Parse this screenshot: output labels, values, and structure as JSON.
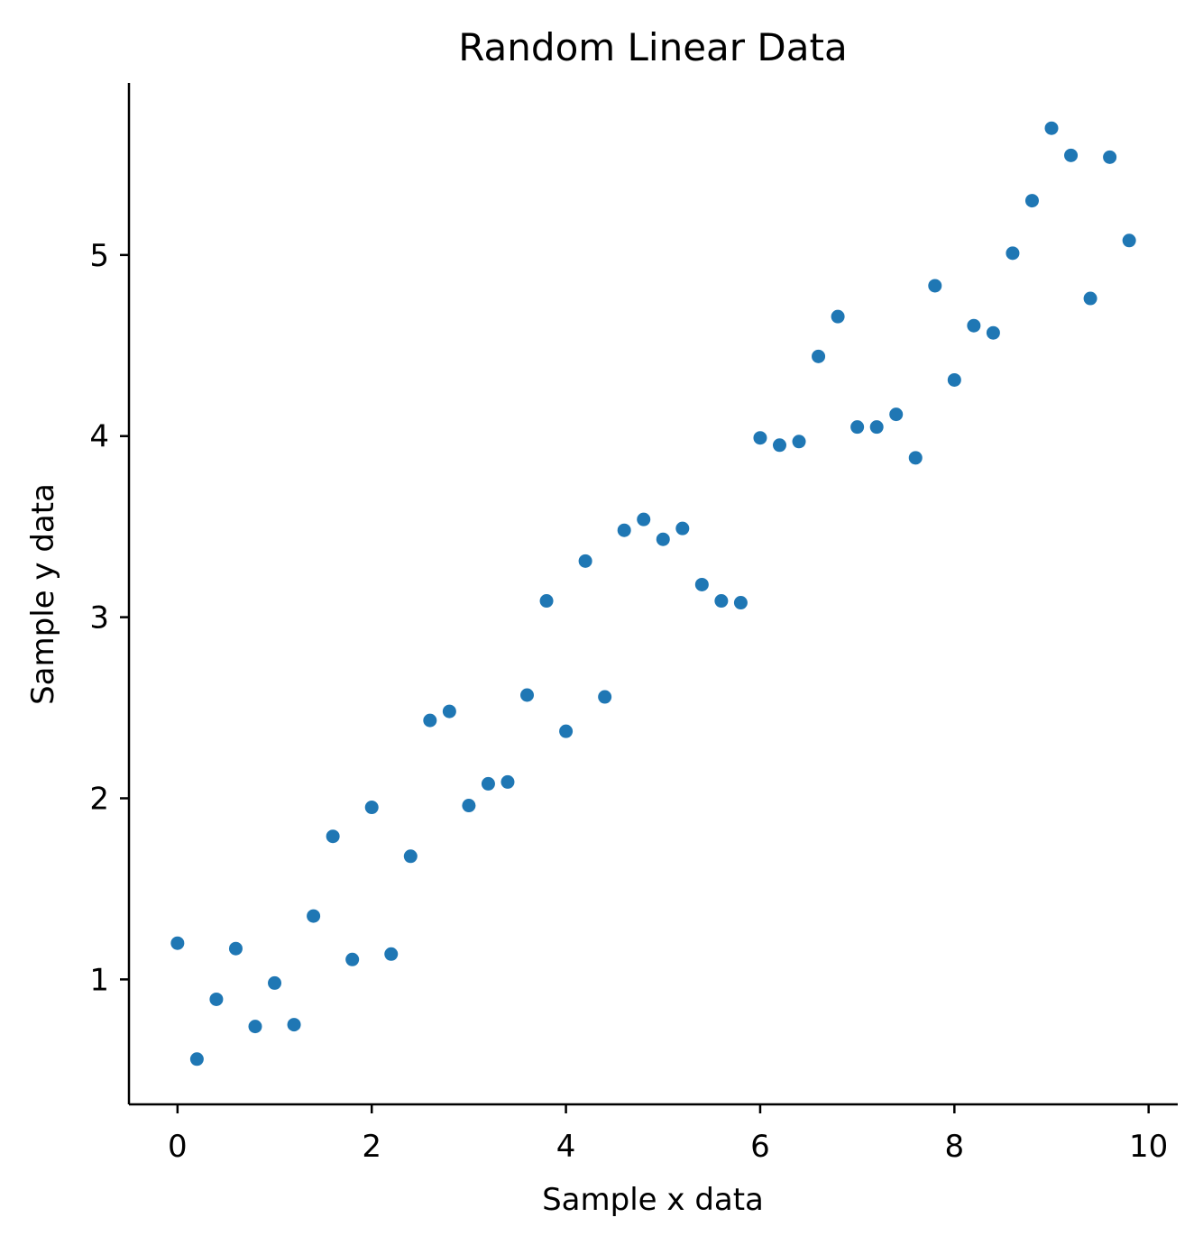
{
  "chart_data": {
    "type": "scatter",
    "title": "Random Linear Data",
    "xlabel": "Sample x data",
    "ylabel": "Sample y data",
    "xlim": [
      -0.5,
      10.3
    ],
    "ylim": [
      0.31,
      5.95
    ],
    "xticks": [
      0,
      2,
      4,
      6,
      8,
      10
    ],
    "yticks": [
      1,
      2,
      3,
      4,
      5
    ],
    "xtick_labels": [
      "0",
      "2",
      "4",
      "6",
      "8",
      "10"
    ],
    "ytick_labels": [
      "1",
      "2",
      "3",
      "4",
      "5"
    ],
    "grid": false,
    "marker_color": "#1f77b4",
    "x": [
      0.0,
      0.2,
      0.4,
      0.6,
      0.8,
      1.0,
      1.2,
      1.4,
      1.6,
      1.8,
      2.0,
      2.2,
      2.4,
      2.6,
      2.8,
      3.0,
      3.2,
      3.4,
      3.6,
      3.8,
      4.0,
      4.2,
      4.4,
      4.6,
      4.8,
      5.0,
      5.2,
      5.4,
      5.6,
      5.8,
      6.0,
      6.2,
      6.4,
      6.6,
      6.8,
      7.0,
      7.2,
      7.4,
      7.6,
      7.8,
      8.0,
      8.2,
      8.4,
      8.6,
      8.8,
      9.0,
      9.2,
      9.4,
      9.6,
      9.8
    ],
    "y": [
      1.2,
      0.56,
      0.89,
      1.17,
      0.74,
      0.98,
      0.75,
      1.35,
      1.79,
      1.11,
      1.95,
      1.14,
      1.68,
      2.43,
      2.48,
      1.96,
      2.08,
      2.09,
      2.57,
      3.09,
      2.37,
      3.31,
      2.56,
      3.48,
      3.54,
      3.43,
      3.49,
      3.18,
      3.09,
      3.08,
      3.99,
      3.95,
      3.97,
      4.44,
      4.66,
      4.05,
      4.05,
      4.12,
      3.88,
      4.83,
      4.31,
      4.61,
      4.57,
      5.01,
      5.3,
      5.7,
      5.55,
      4.76,
      5.54,
      5.08
    ]
  }
}
